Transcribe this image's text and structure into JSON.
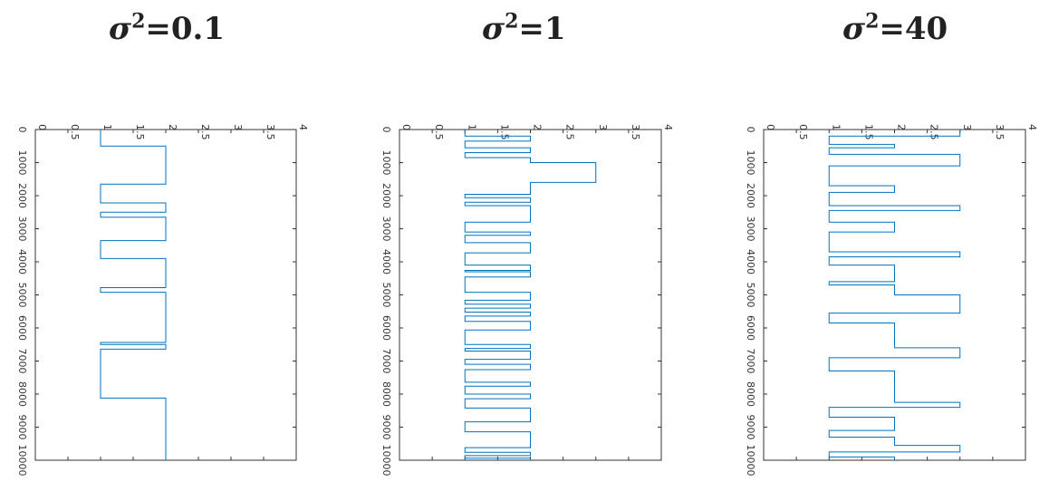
{
  "titles": [
    {
      "symbol": "σ",
      "exp": "2",
      "rest": "=0.1"
    },
    {
      "symbol": "σ",
      "exp": "2",
      "rest": "=1"
    },
    {
      "symbol": "σ",
      "exp": "2",
      "rest": "=40"
    }
  ],
  "colors": {
    "series": "#0072BD",
    "axis": "#333333"
  },
  "chart_data": [
    {
      "type": "line",
      "title": "σ²=0.1",
      "xlabel": "",
      "ylabel": "",
      "xlim": [
        0,
        4
      ],
      "ylim": [
        0,
        10000
      ],
      "x_ticks": [
        "0",
        "0.5",
        "1",
        "1.5",
        "2",
        "2.5",
        "3",
        "3.5",
        "4"
      ],
      "y_ticks": [
        "0",
        "1000",
        "2000",
        "3000",
        "4000",
        "5000",
        "6000",
        "7000",
        "8000",
        "9000",
        "10000"
      ],
      "orientation": "rotated: value axis on top, sample index downward",
      "segments": [
        {
          "y": [
            0,
            500
          ],
          "v": 1
        },
        {
          "y": [
            500,
            1650
          ],
          "v": 2
        },
        {
          "y": [
            1650,
            2220
          ],
          "v": 1
        },
        {
          "y": [
            2220,
            2500
          ],
          "v": 2
        },
        {
          "y": [
            2500,
            2650
          ],
          "v": 1
        },
        {
          "y": [
            2650,
            3360
          ],
          "v": 2
        },
        {
          "y": [
            3360,
            3900
          ],
          "v": 1
        },
        {
          "y": [
            3900,
            4780
          ],
          "v": 2
        },
        {
          "y": [
            4780,
            4920
          ],
          "v": 1
        },
        {
          "y": [
            4920,
            6440
          ],
          "v": 2
        },
        {
          "y": [
            6440,
            6500
          ],
          "v": 1
        },
        {
          "y": [
            6500,
            6640
          ],
          "v": 2
        },
        {
          "y": [
            6640,
            8120
          ],
          "v": 1
        },
        {
          "y": [
            8120,
            10000
          ],
          "v": 2
        }
      ]
    },
    {
      "type": "line",
      "title": "σ²=1",
      "xlabel": "",
      "ylabel": "",
      "xlim": [
        0,
        4
      ],
      "ylim": [
        0,
        10000
      ],
      "x_ticks": [
        "0",
        "0.5",
        "1",
        "1.5",
        "2",
        "2.5",
        "3",
        "3.5",
        "4"
      ],
      "y_ticks": [
        "0",
        "1000",
        "2000",
        "3000",
        "4000",
        "5000",
        "6000",
        "7000",
        "8000",
        "9000",
        "10000"
      ],
      "orientation": "rotated: value axis on top, sample index downward",
      "segments": [
        {
          "y": [
            0,
            200
          ],
          "v": 1
        },
        {
          "y": [
            200,
            350
          ],
          "v": 2
        },
        {
          "y": [
            350,
            550
          ],
          "v": 1
        },
        {
          "y": [
            550,
            700
          ],
          "v": 2
        },
        {
          "y": [
            700,
            850
          ],
          "v": 1
        },
        {
          "y": [
            850,
            1000
          ],
          "v": 2
        },
        {
          "y": [
            1000,
            1600
          ],
          "v": 3
        },
        {
          "y": [
            1600,
            1960
          ],
          "v": 2
        },
        {
          "y": [
            1960,
            2060
          ],
          "v": 1
        },
        {
          "y": [
            2060,
            2200
          ],
          "v": 2
        },
        {
          "y": [
            2200,
            2300
          ],
          "v": 1
        },
        {
          "y": [
            2300,
            2800
          ],
          "v": 2
        },
        {
          "y": [
            2800,
            3100
          ],
          "v": 1
        },
        {
          "y": [
            3100,
            3200
          ],
          "v": 2
        },
        {
          "y": [
            3200,
            3420
          ],
          "v": 1
        },
        {
          "y": [
            3420,
            3730
          ],
          "v": 2
        },
        {
          "y": [
            3730,
            4100
          ],
          "v": 1
        },
        {
          "y": [
            4100,
            4260
          ],
          "v": 2
        },
        {
          "y": [
            4260,
            4300
          ],
          "v": 1
        },
        {
          "y": [
            4300,
            4460
          ],
          "v": 2
        },
        {
          "y": [
            4460,
            4920
          ],
          "v": 1
        },
        {
          "y": [
            4920,
            5160
          ],
          "v": 2
        },
        {
          "y": [
            5160,
            5280
          ],
          "v": 1
        },
        {
          "y": [
            5280,
            5400
          ],
          "v": 2
        },
        {
          "y": [
            5400,
            5520
          ],
          "v": 1
        },
        {
          "y": [
            5520,
            5640
          ],
          "v": 2
        },
        {
          "y": [
            5640,
            5800
          ],
          "v": 1
        },
        {
          "y": [
            5800,
            6060
          ],
          "v": 2
        },
        {
          "y": [
            6060,
            6500
          ],
          "v": 1
        },
        {
          "y": [
            6500,
            6620
          ],
          "v": 2
        },
        {
          "y": [
            6620,
            6700
          ],
          "v": 1
        },
        {
          "y": [
            6700,
            6950
          ],
          "v": 2
        },
        {
          "y": [
            6950,
            7100
          ],
          "v": 1
        },
        {
          "y": [
            7100,
            7260
          ],
          "v": 2
        },
        {
          "y": [
            7260,
            7640
          ],
          "v": 1
        },
        {
          "y": [
            7640,
            7760
          ],
          "v": 2
        },
        {
          "y": [
            7760,
            8000
          ],
          "v": 1
        },
        {
          "y": [
            8000,
            8140
          ],
          "v": 2
        },
        {
          "y": [
            8140,
            8420
          ],
          "v": 1
        },
        {
          "y": [
            8420,
            8840
          ],
          "v": 2
        },
        {
          "y": [
            8840,
            9140
          ],
          "v": 1
        },
        {
          "y": [
            9140,
            9620
          ],
          "v": 2
        },
        {
          "y": [
            9620,
            9760
          ],
          "v": 1
        },
        {
          "y": [
            9760,
            9860
          ],
          "v": 2
        },
        {
          "y": [
            9860,
            9940
          ],
          "v": 1
        },
        {
          "y": [
            9940,
            10000
          ],
          "v": 2
        }
      ]
    },
    {
      "type": "line",
      "title": "σ²=40",
      "xlabel": "",
      "ylabel": "",
      "xlim": [
        0,
        4
      ],
      "ylim": [
        0,
        10000
      ],
      "x_ticks": [
        "0",
        "0.5",
        "1",
        "1.5",
        "2",
        "2.5",
        "3",
        "3.5",
        "4"
      ],
      "y_ticks": [
        "0",
        "1000",
        "2000",
        "3000",
        "4000",
        "5000",
        "6000",
        "7000",
        "8000",
        "9000",
        "10000"
      ],
      "orientation": "rotated: value axis on top, sample index downward",
      "segments": [
        {
          "y": [
            0,
            200
          ],
          "v": 3
        },
        {
          "y": [
            200,
            450
          ],
          "v": 1
        },
        {
          "y": [
            450,
            550
          ],
          "v": 2
        },
        {
          "y": [
            550,
            750
          ],
          "v": 1
        },
        {
          "y": [
            750,
            1100
          ],
          "v": 3
        },
        {
          "y": [
            1100,
            1700
          ],
          "v": 1
        },
        {
          "y": [
            1700,
            1900
          ],
          "v": 2
        },
        {
          "y": [
            1900,
            2300
          ],
          "v": 1
        },
        {
          "y": [
            2300,
            2450
          ],
          "v": 3
        },
        {
          "y": [
            2450,
            2800
          ],
          "v": 1
        },
        {
          "y": [
            2800,
            3100
          ],
          "v": 2
        },
        {
          "y": [
            3100,
            3700
          ],
          "v": 1
        },
        {
          "y": [
            3700,
            3850
          ],
          "v": 3
        },
        {
          "y": [
            3850,
            4100
          ],
          "v": 1
        },
        {
          "y": [
            4100,
            4600
          ],
          "v": 2
        },
        {
          "y": [
            4600,
            4700
          ],
          "v": 1
        },
        {
          "y": [
            4700,
            5000
          ],
          "v": 2
        },
        {
          "y": [
            5000,
            5550
          ],
          "v": 3
        },
        {
          "y": [
            5550,
            5850
          ],
          "v": 1
        },
        {
          "y": [
            5850,
            6600
          ],
          "v": 2
        },
        {
          "y": [
            6600,
            6900
          ],
          "v": 3
        },
        {
          "y": [
            6900,
            7300
          ],
          "v": 1
        },
        {
          "y": [
            7300,
            8250
          ],
          "v": 2
        },
        {
          "y": [
            8250,
            8400
          ],
          "v": 3
        },
        {
          "y": [
            8400,
            8700
          ],
          "v": 1
        },
        {
          "y": [
            8700,
            9100
          ],
          "v": 2
        },
        {
          "y": [
            9100,
            9300
          ],
          "v": 1
        },
        {
          "y": [
            9300,
            9550
          ],
          "v": 2
        },
        {
          "y": [
            9550,
            9750
          ],
          "v": 3
        },
        {
          "y": [
            9750,
            9900
          ],
          "v": 1
        },
        {
          "y": [
            9900,
            10000
          ],
          "v": 2
        }
      ]
    }
  ]
}
